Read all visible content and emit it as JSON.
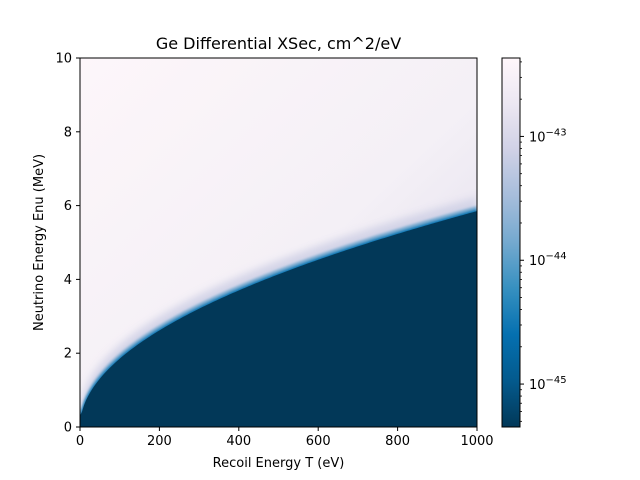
{
  "chart_data": {
    "type": "heatmap",
    "title": "Ge Differential XSec, cm^2/eV",
    "xlabel": "Recoil Energy T (eV)",
    "ylabel": "Neutrino Energy Enu (MeV)",
    "xlim": [
      0,
      1000
    ],
    "ylim": [
      0,
      10
    ],
    "x_ticks": [
      "0",
      "200",
      "400",
      "600",
      "800",
      "1000"
    ],
    "y_ticks": [
      "0",
      "2",
      "4",
      "6",
      "8",
      "10"
    ],
    "colorbar": {
      "scale": "log",
      "range": [
        4.5e-46,
        4.3e-43
      ],
      "ticks": [
        {
          "base": "10",
          "exp": "−43",
          "value": 1e-43
        },
        {
          "base": "10",
          "exp": "−44",
          "value": 1e-44
        },
        {
          "base": "10",
          "exp": "−45",
          "value": 1e-45
        }
      ],
      "colormap": "PuBu_r",
      "colors": [
        "#023858",
        "#045a8d",
        "#0570b0",
        "#3690c0",
        "#74a9cf",
        "#a6bddb",
        "#d0d1e6",
        "#ece7f2",
        "#fff7fb"
      ]
    },
    "boundary_curve": {
      "description_points": [
        {
          "x": 0,
          "y": 0.3
        },
        {
          "x": 20,
          "y": 1.0
        },
        {
          "x": 100,
          "y": 2.0
        },
        {
          "x": 200,
          "y": 2.65
        },
        {
          "x": 400,
          "y": 3.65
        },
        {
          "x": 600,
          "y": 4.5
        },
        {
          "x": 800,
          "y": 5.2
        },
        {
          "x": 1000,
          "y": 5.85
        }
      ],
      "below_value": 4.5e-46
    }
  }
}
